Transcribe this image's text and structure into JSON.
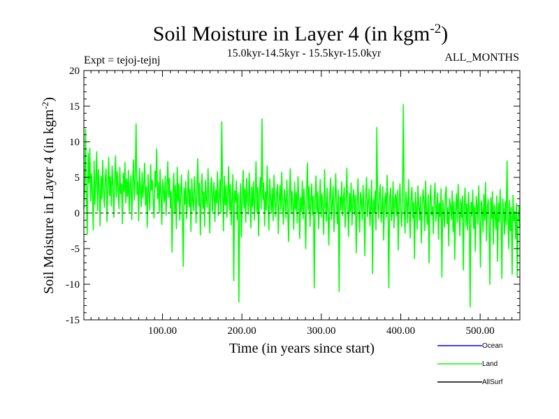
{
  "chart_data": {
    "type": "line",
    "title": "Soil Moisture in Layer 4 (in kgm",
    "title_sup": "-2",
    "title_close": ")",
    "subtitle_left": "Expt = tejoj-tejnj",
    "subtitle_center": "15.0kyr-14.5kyr - 15.5kyr-15.0kyr",
    "subtitle_right": "ALL_MONTHS",
    "xlabel": "Time (in years since start)",
    "ylabel": "Soil Moisture in Layer 4 (in kgm",
    "ylabel_sup": "-2",
    "ylabel_close": ")",
    "xlim": [
      1,
      550
    ],
    "ylim": [
      -15,
      20
    ],
    "x_ticks": [
      100,
      200,
      300,
      400,
      500
    ],
    "x_tick_labels": [
      "100.00",
      "200.00",
      "300.00",
      "400.00",
      "500.00"
    ],
    "y_ticks": [
      -15,
      -10,
      -5,
      0,
      5,
      10,
      15,
      20
    ],
    "y_tick_labels": [
      "-15",
      "-10",
      "-5",
      "0",
      "5",
      "10",
      "15",
      "20"
    ],
    "zero_line": 0,
    "series": [
      {
        "name": "Land",
        "color": "#00ff00",
        "x_start": 1,
        "x_end": 550,
        "values": [
          0.5,
          3.2,
          11.8,
          2.1,
          -3.0,
          8.4,
          4.2,
          9.1,
          1.7,
          5.5,
          2.8,
          -2.4,
          7.3,
          1.2,
          4.6,
          8.6,
          0.3,
          6.1,
          3.4,
          -1.8,
          5.2,
          2.0,
          7.4,
          3.1,
          0.8,
          4.9,
          6.2,
          -1.2,
          3.6,
          7.8,
          2.4,
          5.1,
          1.0,
          6.6,
          3.9,
          -0.6,
          4.4,
          8.0,
          2.2,
          5.8,
          3.5,
          0.6,
          6.4,
          2.7,
          4.1,
          -1.5,
          5.6,
          3.0,
          7.1,
          1.4,
          4.8,
          2.3,
          6.0,
          0.2,
          3.8,
          5.3,
          -0.9,
          4.2,
          7.5,
          1.8,
          5.0,
          12.5,
          2.6,
          4.4,
          -1.1,
          6.3,
          3.3,
          0.9,
          5.7,
          2.1,
          4.0,
          7.0,
          1.1,
          3.7,
          -2.0,
          5.4,
          2.9,
          0.4,
          6.8,
          3.2,
          4.6,
          1.3,
          -0.7,
          5.9,
          3.6,
          9.0,
          2.0,
          4.3,
          0.1,
          6.1,
          2.5,
          -1.6,
          4.7,
          3.0,
          1.5,
          5.2,
          -0.3,
          3.4,
          7.2,
          2.2,
          4.9,
          0.7,
          3.1,
          -5.5,
          2.8,
          5.6,
          0.0,
          3.9,
          -2.2,
          6.4,
          1.6,
          4.1,
          -1.0,
          2.7,
          5.3,
          0.5,
          -7.5,
          3.5,
          1.2,
          4.4,
          -0.8,
          2.3,
          6.0,
          0.9,
          3.3,
          -2.6,
          4.8,
          1.9,
          0.3,
          5.1,
          2.6,
          -1.4,
          3.8,
          7.6,
          1.0,
          4.2,
          -3.1,
          2.4,
          5.5,
          0.6,
          3.0,
          -1.9,
          4.6,
          2.0,
          0.8,
          6.2,
          1.7,
          -2.8,
          3.6,
          5.0,
          0.2,
          2.9,
          4.3,
          -1.2,
          3.2,
          1.4,
          5.8,
          -0.4,
          2.1,
          4.7,
          0.0,
          12.8,
          3.3,
          -2.5,
          5.2,
          1.1,
          3.9,
          -0.6,
          2.6,
          6.5,
          0.4,
          4.0,
          -1.7,
          2.2,
          5.4,
          -9.5,
          3.1,
          1.5,
          4.5,
          -0.9,
          2.8,
          -12.5,
          1.3,
          4.1,
          -3.4,
          2.5,
          6.0,
          0.7,
          3.4,
          -1.3,
          4.9,
          2.0,
          -0.2,
          5.6,
          1.8,
          -2.1,
          3.7,
          0.9,
          4.4,
          -1.0,
          2.3,
          7.2,
          0.1,
          3.6,
          -3.2,
          2.7,
          5.0,
          0.6,
          13.2,
          1.9,
          4.2,
          -1.8,
          3.0,
          0.4,
          6.6,
          1.2,
          -2.4,
          4.8,
          2.1,
          0.0,
          3.5,
          -1.1,
          5.3,
          1.6,
          -0.5,
          2.8,
          4.0,
          -2.9,
          1.7,
          3.9,
          0.3,
          5.7,
          1.0,
          -1.6,
          3.3,
          2.0,
          -0.7,
          4.6,
          0.8,
          -4.0,
          2.5,
          6.2,
          -0.1,
          3.1,
          1.4,
          -2.3,
          4.3,
          0.5,
          2.9,
          -1.4,
          5.1,
          1.8,
          -3.6,
          2.2,
          0.2,
          4.5,
          -0.8,
          3.4,
          1.1,
          -5.0,
          2.6,
          7.0,
          0.4,
          3.7,
          -1.9,
          1.5,
          4.1,
          -0.3,
          2.4,
          -10.5,
          1.9,
          5.2,
          0.0,
          3.0,
          -2.2,
          1.3,
          4.7,
          -0.6,
          2.7,
          0.9,
          -3.0,
          6.1,
          1.6,
          -1.2,
          3.5,
          0.3,
          -4.5,
          2.1,
          4.9,
          -0.9,
          1.2,
          3.8,
          -2.6,
          0.7,
          5.5,
          1.4,
          -1.5,
          3.2,
          -11.0,
          2.3,
          0.5,
          4.4,
          -0.4,
          1.8,
          3.6,
          -2.0,
          0.9,
          6.3,
          1.0,
          -3.3,
          2.8,
          0.1,
          4.2,
          -1.7,
          1.5,
          3.3,
          -0.2,
          2.5,
          -5.6,
          1.1,
          4.8,
          0.4,
          -2.7,
          2.9,
          1.7,
          -1.0,
          3.9,
          0.6,
          -6.0,
          2.2,
          5.0,
          -0.5,
          1.3,
          3.4,
          -1.8,
          0.8,
          4.6,
          -8.5,
          1.9,
          0.0,
          3.1,
          -2.4,
          12.0,
          1.4,
          -0.8,
          2.6,
          4.0,
          -1.3,
          0.5,
          3.7,
          -3.8,
          1.2,
          2.8,
          -0.6,
          5.3,
          0.9,
          -10.5,
          2.0,
          3.5,
          -1.1,
          0.3,
          4.4,
          -2.1,
          1.6,
          2.7,
          -0.4,
          3.2,
          -5.2,
          1.0,
          4.1,
          0.2,
          -1.9,
          2.4,
          15.2,
          0.6,
          -2.8,
          3.0,
          1.3,
          -1.4,
          4.7,
          0.4,
          -3.5,
          2.1,
          3.6,
          -0.7,
          1.5,
          -6.4,
          2.9,
          0.8,
          -2.3,
          3.8,
          1.1,
          -1.0,
          2.3,
          -4.2,
          0.5,
          3.3,
          1.7,
          -2.5,
          4.5,
          0.0,
          -1.6,
          2.6,
          -7.0,
          1.2,
          3.9,
          -0.3,
          0.9,
          -2.9,
          2.2,
          4.2,
          -1.2,
          0.6,
          2.8,
          -3.7,
          1.4,
          -0.5,
          3.4,
          -9.0,
          1.8,
          0.2,
          -2.0,
          2.5,
          3.7,
          -1.5,
          0.7,
          -4.6,
          2.0,
          1.0,
          -0.9,
          3.1,
          -2.6,
          1.6,
          -6.5,
          0.4,
          2.7,
          -1.3,
          4.0,
          0.1,
          -3.2,
          1.9,
          -0.6,
          2.4,
          -8.0,
          0.8,
          3.5,
          -1.8,
          1.3,
          -2.4,
          2.9,
          0.3,
          -13.2,
          1.5,
          -0.4,
          3.2,
          -2.2,
          0.9,
          -5.4,
          2.3,
          1.1,
          -1.6,
          3.8,
          -0.2,
          -7.6,
          1.7,
          0.5,
          -2.7,
          2.6,
          -1.0,
          4.3,
          -3.9,
          0.7,
          1.9,
          -1.4,
          -10.0,
          2.1,
          -0.8,
          3.0,
          -4.4,
          1.2,
          0.0,
          -2.3,
          2.4,
          -6.8,
          1.4,
          -1.2,
          3.3,
          -0.5,
          -9.2,
          2.0,
          0.6,
          -3.0,
          1.6,
          -1.7,
          7.3,
          -0.3,
          -5.0,
          1.8,
          -2.5,
          0.8,
          -8.6,
          2.5,
          -1.1,
          0.2,
          -3.6,
          1.3,
          -9.0,
          -0.4,
          0.9,
          -2.0
        ]
      }
    ],
    "legend": [
      {
        "label": "Ocean",
        "color": "#0000ff"
      },
      {
        "label": "Land",
        "color": "#00ff00"
      },
      {
        "label": "AllSurf",
        "color": "#000000"
      }
    ]
  }
}
